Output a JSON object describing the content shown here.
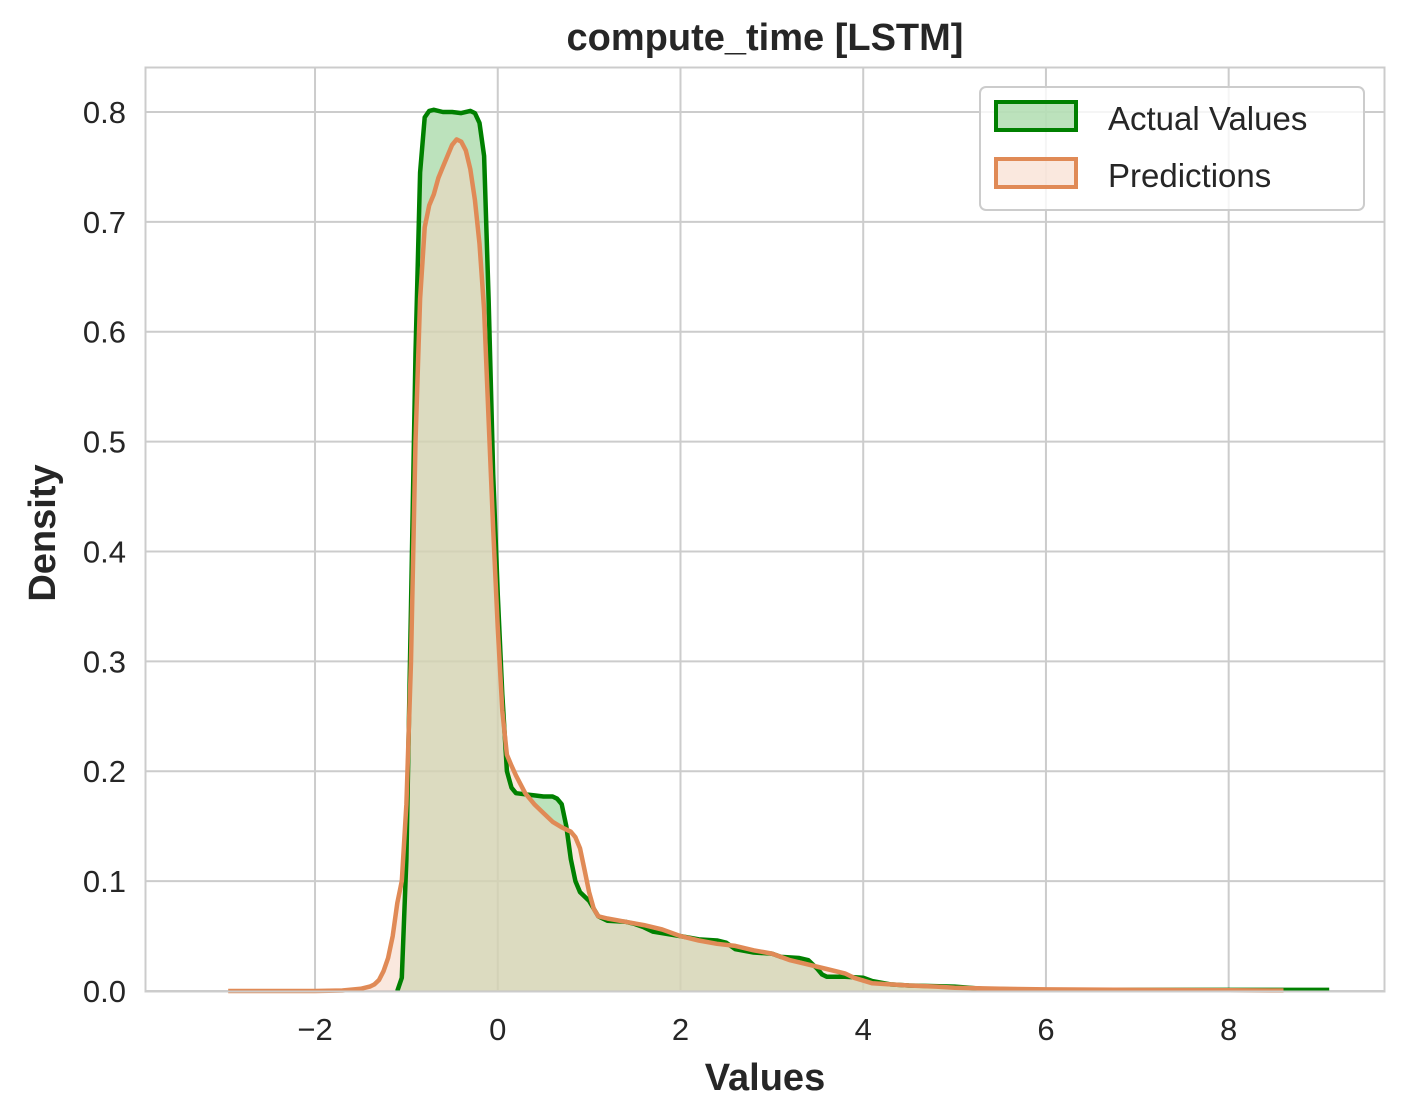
{
  "chart_data": {
    "type": "area",
    "title": "compute_time [LSTM]",
    "xlabel": "Values",
    "ylabel": "Density",
    "xlim": [
      -3.85,
      9.7
    ],
    "ylim": [
      0,
      0.84
    ],
    "xticks": [
      -2,
      0,
      2,
      4,
      6,
      8
    ],
    "xtick_labels": [
      "−2",
      "0",
      "2",
      "4",
      "6",
      "8"
    ],
    "yticks": [
      0.0,
      0.1,
      0.2,
      0.3,
      0.4,
      0.5,
      0.6,
      0.7,
      0.8
    ],
    "ytick_labels": [
      "0.0",
      "0.1",
      "0.2",
      "0.3",
      "0.4",
      "0.5",
      "0.6",
      "0.7",
      "0.8"
    ],
    "grid": true,
    "legend_position": "top-right",
    "series": [
      {
        "name": "Actual Values",
        "line_color": "#008000",
        "fill_color": "#8fcf8f",
        "points": [
          [
            -1.1,
            0.0
          ],
          [
            -1.05,
            0.012
          ],
          [
            -1.0,
            0.12
          ],
          [
            -0.95,
            0.35
          ],
          [
            -0.9,
            0.58
          ],
          [
            -0.85,
            0.745
          ],
          [
            -0.8,
            0.795
          ],
          [
            -0.75,
            0.801
          ],
          [
            -0.7,
            0.802
          ],
          [
            -0.6,
            0.8
          ],
          [
            -0.5,
            0.8
          ],
          [
            -0.4,
            0.799
          ],
          [
            -0.3,
            0.801
          ],
          [
            -0.25,
            0.799
          ],
          [
            -0.2,
            0.79
          ],
          [
            -0.15,
            0.76
          ],
          [
            -0.1,
            0.63
          ],
          [
            -0.05,
            0.47
          ],
          [
            0.0,
            0.36
          ],
          [
            0.05,
            0.27
          ],
          [
            0.1,
            0.2
          ],
          [
            0.15,
            0.185
          ],
          [
            0.2,
            0.18
          ],
          [
            0.3,
            0.179
          ],
          [
            0.4,
            0.178
          ],
          [
            0.5,
            0.177
          ],
          [
            0.6,
            0.177
          ],
          [
            0.65,
            0.175
          ],
          [
            0.7,
            0.17
          ],
          [
            0.75,
            0.15
          ],
          [
            0.8,
            0.12
          ],
          [
            0.85,
            0.1
          ],
          [
            0.9,
            0.09
          ],
          [
            1.0,
            0.082
          ],
          [
            1.05,
            0.075
          ],
          [
            1.1,
            0.068
          ],
          [
            1.2,
            0.064
          ],
          [
            1.4,
            0.063
          ],
          [
            1.5,
            0.061
          ],
          [
            1.6,
            0.058
          ],
          [
            1.7,
            0.054
          ],
          [
            2.0,
            0.05
          ],
          [
            2.2,
            0.047
          ],
          [
            2.4,
            0.046
          ],
          [
            2.5,
            0.044
          ],
          [
            2.6,
            0.038
          ],
          [
            2.8,
            0.035
          ],
          [
            3.0,
            0.034
          ],
          [
            3.1,
            0.031
          ],
          [
            3.3,
            0.03
          ],
          [
            3.4,
            0.028
          ],
          [
            3.5,
            0.02
          ],
          [
            3.55,
            0.015
          ],
          [
            3.6,
            0.013
          ],
          [
            3.8,
            0.013
          ],
          [
            4.0,
            0.012
          ],
          [
            4.1,
            0.009
          ],
          [
            4.3,
            0.006
          ],
          [
            4.5,
            0.005
          ],
          [
            5.0,
            0.004
          ],
          [
            5.3,
            0.002
          ],
          [
            6.0,
            0.001
          ],
          [
            8.4,
            0.001
          ],
          [
            9.1,
            0.001
          ]
        ]
      },
      {
        "name": "Predictions",
        "line_color": "#e08a56",
        "fill_color": "#f5d5c3",
        "points": [
          [
            -2.95,
            0.0
          ],
          [
            -2.0,
            0.0
          ],
          [
            -1.7,
            0.0005
          ],
          [
            -1.5,
            0.002
          ],
          [
            -1.4,
            0.004
          ],
          [
            -1.35,
            0.006
          ],
          [
            -1.3,
            0.01
          ],
          [
            -1.25,
            0.018
          ],
          [
            -1.2,
            0.03
          ],
          [
            -1.15,
            0.05
          ],
          [
            -1.1,
            0.08
          ],
          [
            -1.05,
            0.1
          ],
          [
            -1.0,
            0.17
          ],
          [
            -0.95,
            0.3
          ],
          [
            -0.9,
            0.5
          ],
          [
            -0.85,
            0.63
          ],
          [
            -0.8,
            0.695
          ],
          [
            -0.75,
            0.715
          ],
          [
            -0.7,
            0.725
          ],
          [
            -0.65,
            0.74
          ],
          [
            -0.6,
            0.75
          ],
          [
            -0.55,
            0.76
          ],
          [
            -0.5,
            0.77
          ],
          [
            -0.45,
            0.775
          ],
          [
            -0.4,
            0.773
          ],
          [
            -0.35,
            0.765
          ],
          [
            -0.3,
            0.748
          ],
          [
            -0.25,
            0.72
          ],
          [
            -0.2,
            0.68
          ],
          [
            -0.15,
            0.62
          ],
          [
            -0.1,
            0.52
          ],
          [
            -0.05,
            0.42
          ],
          [
            0.0,
            0.33
          ],
          [
            0.05,
            0.255
          ],
          [
            0.1,
            0.215
          ],
          [
            0.15,
            0.205
          ],
          [
            0.2,
            0.196
          ],
          [
            0.3,
            0.18
          ],
          [
            0.4,
            0.17
          ],
          [
            0.5,
            0.162
          ],
          [
            0.6,
            0.154
          ],
          [
            0.7,
            0.149
          ],
          [
            0.8,
            0.145
          ],
          [
            0.85,
            0.14
          ],
          [
            0.9,
            0.13
          ],
          [
            0.95,
            0.11
          ],
          [
            1.0,
            0.09
          ],
          [
            1.05,
            0.075
          ],
          [
            1.1,
            0.068
          ],
          [
            1.2,
            0.066
          ],
          [
            1.4,
            0.063
          ],
          [
            1.6,
            0.06
          ],
          [
            1.8,
            0.056
          ],
          [
            2.0,
            0.05
          ],
          [
            2.2,
            0.046
          ],
          [
            2.4,
            0.043
          ],
          [
            2.6,
            0.041
          ],
          [
            2.8,
            0.037
          ],
          [
            3.0,
            0.034
          ],
          [
            3.2,
            0.028
          ],
          [
            3.4,
            0.024
          ],
          [
            3.6,
            0.02
          ],
          [
            3.8,
            0.016
          ],
          [
            3.9,
            0.012
          ],
          [
            4.1,
            0.007
          ],
          [
            4.3,
            0.006
          ],
          [
            4.5,
            0.005
          ],
          [
            4.8,
            0.004
          ],
          [
            5.0,
            0.003
          ],
          [
            5.5,
            0.002
          ],
          [
            6.0,
            0.0015
          ],
          [
            7.0,
            0.001
          ],
          [
            8.0,
            0.0006
          ],
          [
            8.6,
            0.0005
          ]
        ]
      }
    ]
  }
}
